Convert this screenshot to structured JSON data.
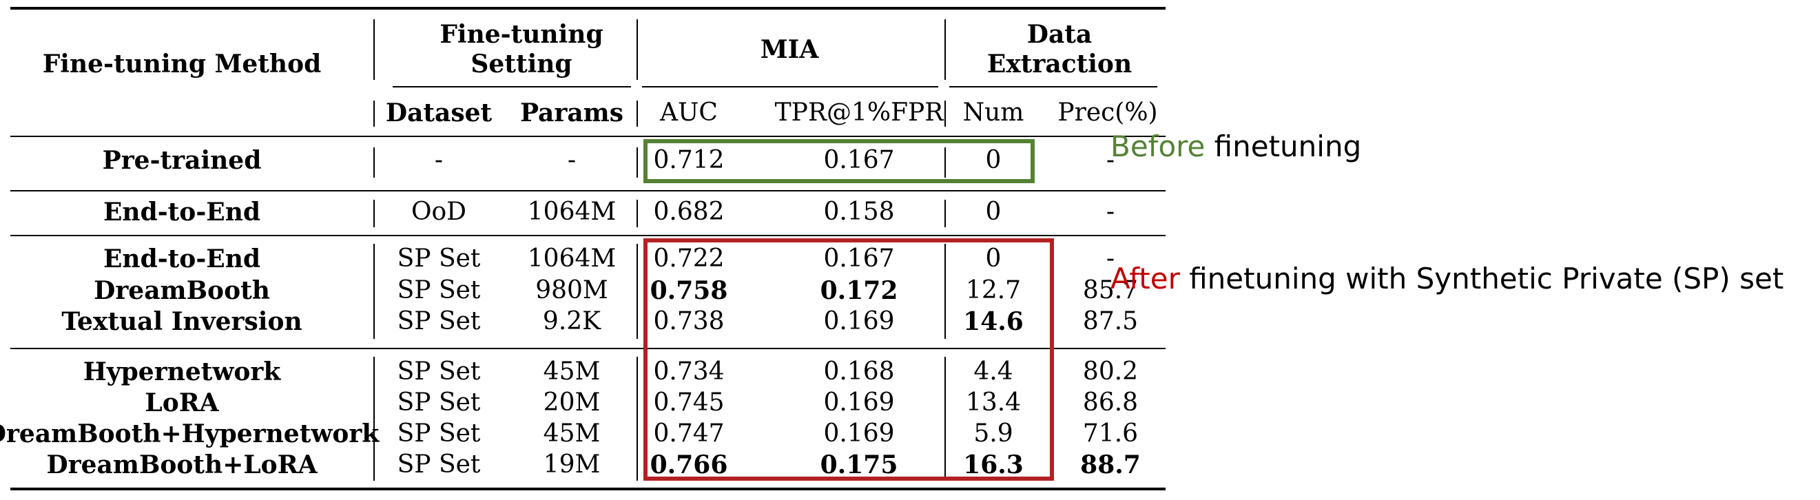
{
  "table": {
    "header": {
      "method_label": "Fine-tuning Method",
      "setting_group": [
        "Fine-tuning",
        "Setting"
      ],
      "mia_group": "MIA",
      "extraction_group": [
        "Data",
        "Extraction"
      ],
      "sub": {
        "dataset": "Dataset",
        "params": "Params",
        "auc": "AUC",
        "tpr": "TPR@1%FPR",
        "num": "Num",
        "prec": "Prec(%)"
      }
    },
    "rows": [
      {
        "method": "Pre-trained",
        "dataset": "-",
        "params": "-",
        "auc": "0.712",
        "tpr": "0.167",
        "num": "0",
        "prec": "-",
        "bold": []
      },
      {
        "method": "End-to-End",
        "dataset": "OoD",
        "params": "1064M",
        "auc": "0.682",
        "tpr": "0.158",
        "num": "0",
        "prec": "-",
        "bold": []
      },
      {
        "method": "End-to-End",
        "dataset": "SP Set",
        "params": "1064M",
        "auc": "0.722",
        "tpr": "0.167",
        "num": "0",
        "prec": "-",
        "bold": []
      },
      {
        "method": "DreamBooth",
        "dataset": "SP Set",
        "params": "980M",
        "auc": "0.758",
        "tpr": "0.172",
        "num": "12.7",
        "prec": "85.7",
        "bold": [
          "auc",
          "tpr"
        ]
      },
      {
        "method": "Textual Inversion",
        "dataset": "SP Set",
        "params": "9.2K",
        "auc": "0.738",
        "tpr": "0.169",
        "num": "14.6",
        "prec": "87.5",
        "bold": [
          "num"
        ]
      },
      {
        "method": "Hypernetwork",
        "dataset": "SP Set",
        "params": "45M",
        "auc": "0.734",
        "tpr": "0.168",
        "num": "4.4",
        "prec": "80.2",
        "bold": []
      },
      {
        "method": "LoRA",
        "dataset": "SP Set",
        "params": "20M",
        "auc": "0.745",
        "tpr": "0.169",
        "num": "13.4",
        "prec": "86.8",
        "bold": []
      },
      {
        "method": "DreamBooth+Hypernetwork",
        "dataset": "SP Set",
        "params": "45M",
        "auc": "0.747",
        "tpr": "0.169",
        "num": "5.9",
        "prec": "71.6",
        "bold": []
      },
      {
        "method": "DreamBooth+LoRA",
        "dataset": "SP Set",
        "params": "19M",
        "auc": "0.766",
        "tpr": "0.175",
        "num": "16.3",
        "prec": "88.7",
        "bold": [
          "auc",
          "tpr",
          "num",
          "prec"
        ]
      }
    ]
  },
  "annotations": {
    "before": {
      "highlight": "Before",
      "rest": " finetuning",
      "highlight_color": "#548235",
      "box_color": "#548235"
    },
    "after": {
      "highlight": "After",
      "rest": " finetuning with Synthetic Private (SP) set",
      "highlight_color": "#c00000",
      "box_color": "#b22222"
    }
  }
}
